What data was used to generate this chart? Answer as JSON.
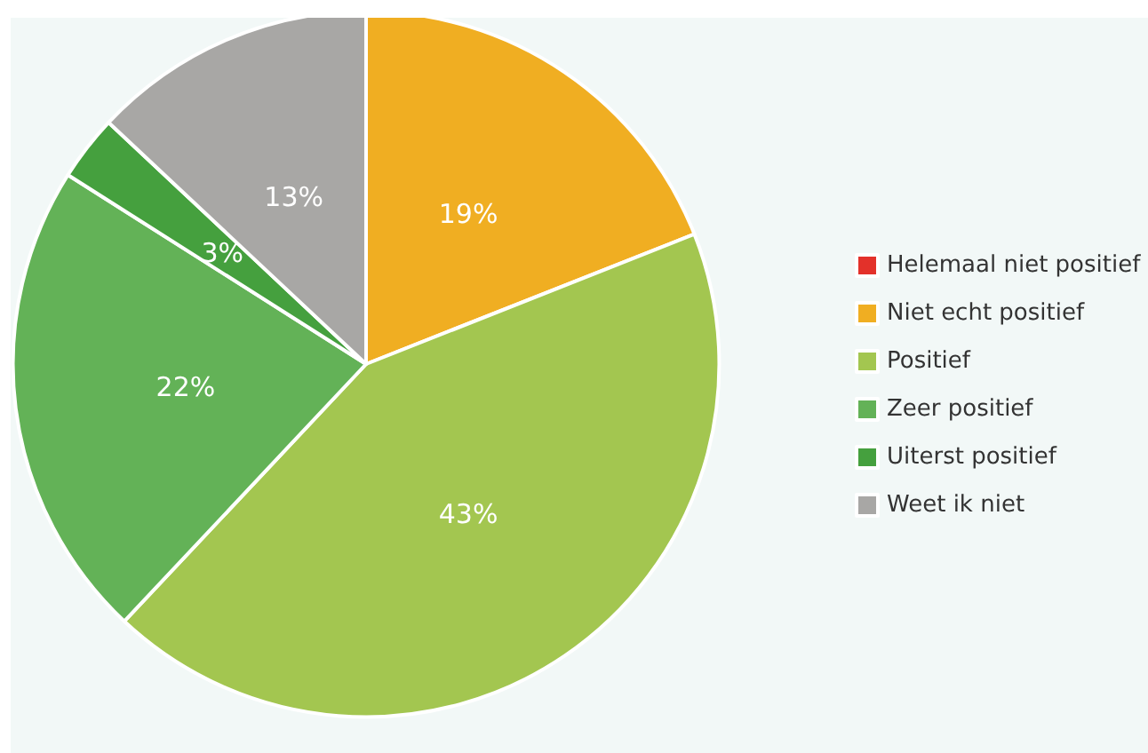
{
  "chart_data": {
    "type": "pie",
    "categories": [
      "Helemaal niet positief",
      "Niet echt positief",
      "Positief",
      "Zeer positief",
      "Uiterst positief",
      "Weet ik niet"
    ],
    "values": [
      0,
      19,
      43,
      22,
      3,
      13
    ],
    "colors": [
      "#e3312a",
      "#f0ae22",
      "#a3c650",
      "#63b257",
      "#45a03e",
      "#a8a7a5"
    ],
    "value_labels": [
      null,
      "19%",
      "43%",
      "22%",
      "3%",
      "13%"
    ],
    "legend": "right"
  }
}
